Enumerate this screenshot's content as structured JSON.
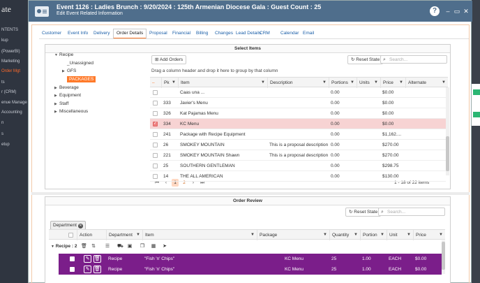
{
  "background": {
    "logo": "ate",
    "items": [
      {
        "label": "NTENTS",
        "chevron": ""
      },
      {
        "label": "kup",
        "chevron": "›"
      },
      {
        "label": "(PowerBI)",
        "chevron": ""
      },
      {
        "label": "Marketing",
        "chevron": "⌄"
      },
      {
        "label": "Order Mgt",
        "chevron": "",
        "active": true
      },
      {
        "label": "ts",
        "chevron": ""
      },
      {
        "label": "r (CRM)",
        "chevron": "›"
      },
      {
        "label": "enue Manage",
        "chevron": ""
      },
      {
        "label": "Accounting",
        "chevron": ""
      },
      {
        "label": "n",
        "chevron": "›"
      },
      {
        "label": "s",
        "chevron": "›"
      },
      {
        "label": "etup",
        "chevron": "›"
      }
    ]
  },
  "header": {
    "title": "Event 1126 : Ladies Brunch : 9/20/2024 : 125th Armenian Diocese Gala : Guest Count : 25",
    "subtitle": "Edit Event Related Information",
    "help": "?",
    "minimize": "–",
    "maximize": "▭",
    "close": "✕"
  },
  "tabs": [
    {
      "label": "Customer"
    },
    {
      "label": "Event Info"
    },
    {
      "label": "Delivery"
    },
    {
      "label": "Order Details",
      "active": true
    },
    {
      "label": "Proposal"
    },
    {
      "label": "Financial"
    },
    {
      "label": "Billing"
    },
    {
      "label": "Changes"
    },
    {
      "label": "Lead Details"
    },
    {
      "label": "CRM"
    },
    {
      "label": "Calendar"
    },
    {
      "label": "Email"
    }
  ],
  "select_items": {
    "title": "Select Items",
    "tree": [
      {
        "label": "Recipe",
        "caret": "▼",
        "level": 0
      },
      {
        "label": "_Unassigned",
        "caret": "",
        "level": 1
      },
      {
        "label": "GFS",
        "caret": "▶",
        "level": 1
      },
      {
        "label": "PACKAGES",
        "caret": "",
        "level": 1,
        "selected": true
      },
      {
        "label": "Beverage",
        "caret": "▶",
        "level": 0
      },
      {
        "label": "Equipment",
        "caret": "▶",
        "level": 0
      },
      {
        "label": "Staff",
        "caret": "▶",
        "level": 0
      },
      {
        "label": "Miscellaneous",
        "caret": "▶",
        "level": 0
      }
    ],
    "add_orders": "Add Orders",
    "reset_state": "Reset State",
    "search_placeholder": "Search...",
    "group_hint": "Drag a column header and drop it here to group by that column",
    "columns": [
      "–",
      "Pk",
      "Item",
      "Description",
      "Portions",
      "Units",
      "Price",
      "Alternate"
    ],
    "rows": [
      {
        "pk": "",
        "item": "Caas una ...",
        "description": "",
        "portions": "0.00",
        "units": "",
        "price": "$0.00",
        "checked": false
      },
      {
        "pk": "333",
        "item": "Javier's Menu",
        "description": "",
        "portions": "0.00",
        "units": "",
        "price": "$0.00",
        "checked": false
      },
      {
        "pk": "326",
        "item": "Kat Pajamas Menu",
        "description": "",
        "portions": "0.00",
        "units": "",
        "price": "$0.00",
        "checked": false
      },
      {
        "pk": "334",
        "item": "KC Menu",
        "description": "",
        "portions": "0.00",
        "units": "",
        "price": "$0.00",
        "checked": true
      },
      {
        "pk": "241",
        "item": "Package with Recipe Equipment",
        "description": "",
        "portions": "0.00",
        "units": "",
        "price": "$1,162....",
        "checked": false
      },
      {
        "pk": "26",
        "item": "SMOKEY MOUNTAIN",
        "description": "This is a proposal description",
        "portions": "0.00",
        "units": "",
        "price": "$270.00",
        "checked": false
      },
      {
        "pk": "221",
        "item": "SMOKEY MOUNTAIN Shawn",
        "description": "This is a proposal description",
        "portions": "0.00",
        "units": "",
        "price": "$270.00",
        "checked": false
      },
      {
        "pk": "25",
        "item": "SOUTHERN GENTLEMAN",
        "description": "",
        "portions": "0.00",
        "units": "",
        "price": "$298.75",
        "checked": false
      },
      {
        "pk": "14",
        "item": "THE ALL AMERICAN",
        "description": "",
        "portions": "0.00",
        "units": "",
        "price": "$130.00",
        "checked": false
      }
    ],
    "pager": {
      "first": "⏮",
      "prev": "‹",
      "pages": [
        "1",
        "2"
      ],
      "next": "›",
      "last": "⏭",
      "info": "1 - 18 of 22 items"
    }
  },
  "order_review": {
    "title": "Order Review",
    "reset_state": "Reset State",
    "search_placeholder": "Search...",
    "group_chip": "Department",
    "columns": [
      "Action",
      "Department",
      "Item",
      "Package",
      "Quantity",
      "Portion",
      "Unit",
      "Price"
    ],
    "group_label": "Recipe : 2",
    "rows": [
      {
        "department": "Recipe",
        "item": "\"Fish 'n' Chips\"",
        "package": "KC Menu",
        "quantity": "25",
        "portion": "1.00",
        "unit": "EACH",
        "price": "$0.00"
      },
      {
        "department": "Recipe",
        "item": "\"Fish 'n' Chips\"",
        "package": "KC Menu",
        "quantity": "25",
        "portion": "1.00",
        "unit": "EACH",
        "price": "$0.00"
      }
    ]
  }
}
